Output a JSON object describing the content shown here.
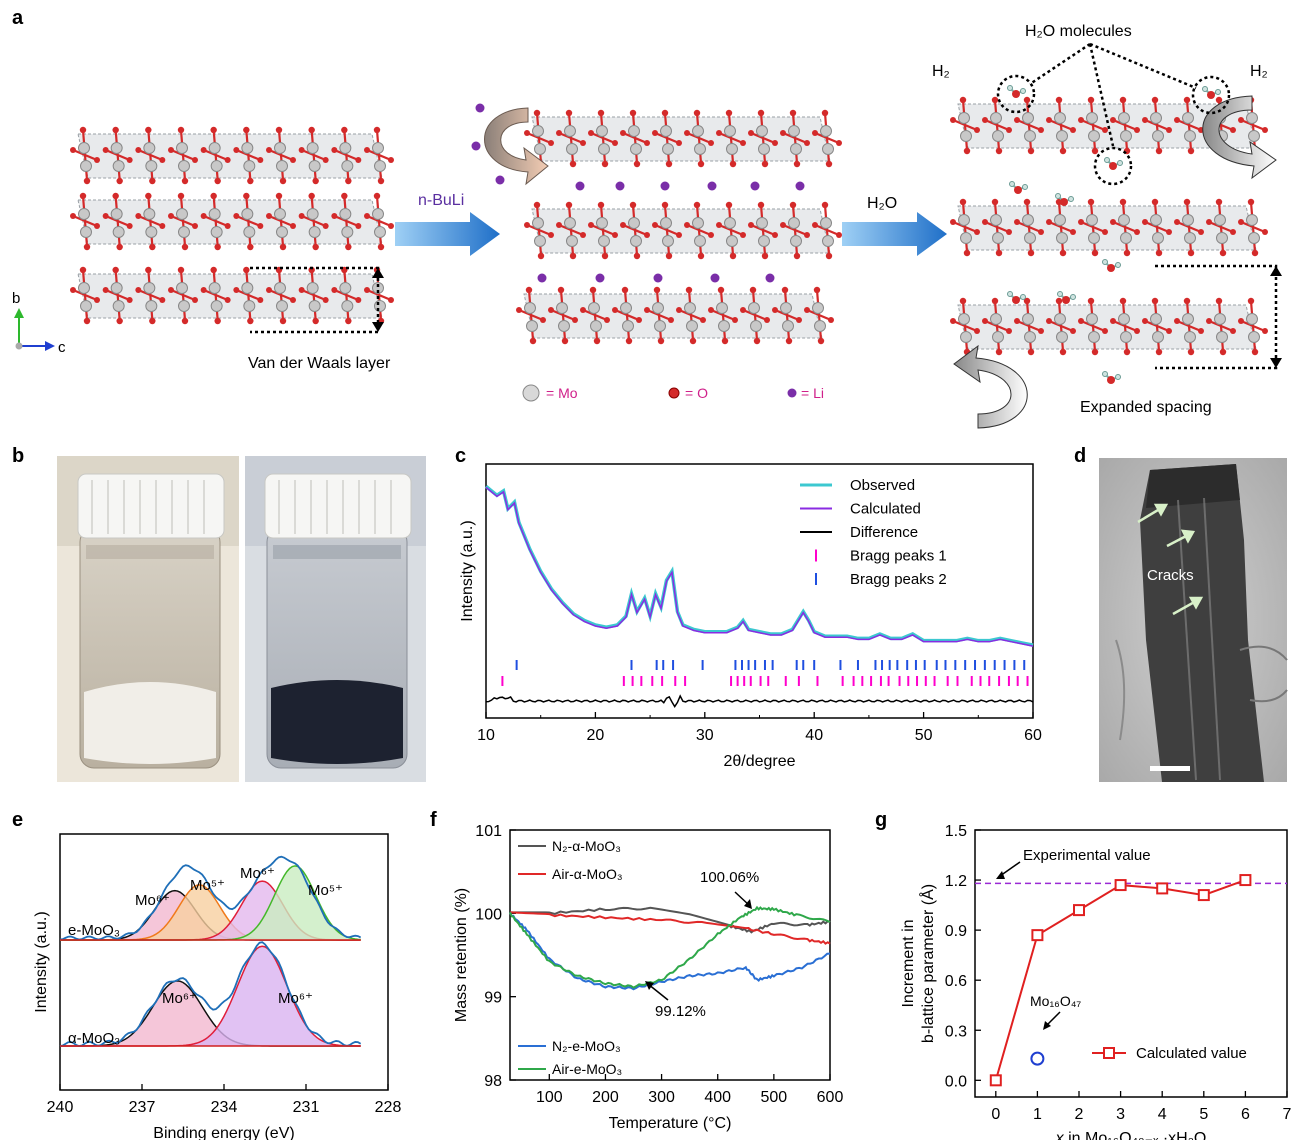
{
  "panels": {
    "a": {
      "label": "a",
      "axis_b": "b",
      "axis_c": "c",
      "vdw_label": "Van der Waals layer",
      "arrow1_label": "n-BuLi",
      "arrow2_label": "H₂O",
      "h2o_molecules": "H₂O molecules",
      "h2_left": "H₂",
      "h2_right": "H₂",
      "expanded_label": "Expanded spacing",
      "legend_mo": "= Mo",
      "legend_o": "= O",
      "legend_li": "= Li"
    },
    "b": {
      "label": "b"
    },
    "c": {
      "label": "c"
    },
    "d": {
      "label": "d",
      "cracks": "Cracks"
    },
    "e": {
      "label": "e"
    },
    "f": {
      "label": "f"
    },
    "g": {
      "label": "g"
    }
  },
  "colors": {
    "mo": "#c8c8c8",
    "oxygen": "#d42a2a",
    "li": "#7a2ea8",
    "arrow_blue": "#2a7fd4",
    "legend_text": "#d0208a"
  },
  "chart_data": [
    {
      "panel": "c",
      "type": "line",
      "xlabel": "2θ/degree",
      "ylabel": "Intensity (a.u.)",
      "xlim": [
        10,
        60
      ],
      "xticks": [
        "10",
        "20",
        "30",
        "40",
        "50",
        "60"
      ],
      "legend": [
        "Observed",
        "Calculated",
        "Difference",
        "Bragg peaks 1",
        "Bragg peaks 2"
      ],
      "series_colors": [
        "#3cc8d0",
        "#8a2be2",
        "#000000",
        "#ff00cc",
        "#1f4fe0"
      ],
      "observed": {
        "x": [
          10,
          11,
          11.6,
          12,
          12.6,
          13,
          14,
          15,
          16,
          17,
          18,
          19,
          20,
          21,
          22,
          22.8,
          23.3,
          23.8,
          24.5,
          25,
          25.5,
          26,
          26.5,
          27,
          27.5,
          28,
          29,
          30,
          31,
          32,
          33,
          33.5,
          34,
          35,
          36,
          37,
          38,
          39,
          39.5,
          40,
          41,
          42,
          43,
          44,
          45,
          46,
          47,
          48,
          49,
          50,
          51,
          52,
          53,
          54,
          55,
          56,
          57,
          58,
          59,
          60
        ],
        "y": [
          100,
          96,
          98,
          90,
          93,
          84,
          72,
          62,
          54,
          48,
          43,
          40,
          38,
          37,
          38,
          42,
          52,
          44,
          50,
          42,
          52,
          46,
          58,
          62,
          44,
          38,
          36,
          35,
          35,
          35,
          37,
          40,
          36,
          35,
          34,
          34,
          36,
          44,
          40,
          35,
          33,
          33,
          33,
          32,
          32,
          34,
          32,
          32,
          34,
          31,
          31,
          31,
          31,
          32,
          31,
          31,
          32,
          31,
          30,
          29
        ]
      },
      "difference_level": 4,
      "bragg1_x": [
        11.5,
        22.6,
        23.4,
        24.2,
        25.2,
        26.1,
        27.3,
        28.2,
        32.4,
        33.0,
        33.6,
        34.2,
        35.1,
        35.8,
        37.4,
        38.6,
        40.3,
        42.6,
        43.6,
        44.4,
        45.2,
        46.1,
        46.8,
        47.8,
        48.6,
        49.4,
        50.2,
        51.0,
        52.2,
        53.1,
        54.4,
        55.2,
        56.0,
        56.9,
        57.8,
        58.6,
        59.5
      ],
      "bragg2_x": [
        12.8,
        23.3,
        25.6,
        26.2,
        27.1,
        29.8,
        32.8,
        33.4,
        34.0,
        34.6,
        35.5,
        36.2,
        38.4,
        39.0,
        40.0,
        42.4,
        44.0,
        45.6,
        46.2,
        46.9,
        47.6,
        48.5,
        49.3,
        50.1,
        51.2,
        52.0,
        52.9,
        53.8,
        54.7,
        55.6,
        56.5,
        57.4,
        58.3,
        59.2
      ]
    },
    {
      "panel": "e",
      "type": "area",
      "xlabel": "Binding energy (eV)",
      "ylabel": "Intensity (a.u.)",
      "xlim": [
        240,
        228
      ],
      "xticks": [
        "240",
        "237",
        "234",
        "231",
        "228"
      ],
      "samples": [
        "e-MoO₃",
        "α-MoO₃"
      ],
      "peak_labels_top": [
        "Mo⁶⁺",
        "Mo⁵⁺",
        "Mo⁶⁺",
        "Mo⁵⁺"
      ],
      "peak_labels_bottom": [
        "Mo⁶⁺",
        "Mo⁶⁺"
      ],
      "e_MoO3_peaks": [
        {
          "label": "Mo6+",
          "center": 235.8,
          "height": 0.52,
          "fill": "#f3b8d0",
          "line": "#111111"
        },
        {
          "label": "Mo5+",
          "center": 234.9,
          "height": 0.58,
          "fill": "#f7cfa0",
          "line": "#f07a1a"
        },
        {
          "label": "Mo6+",
          "center": 232.6,
          "height": 0.62,
          "fill": "#e4b8ee",
          "line": "#e01e3a"
        },
        {
          "label": "Mo5+",
          "center": 231.4,
          "height": 0.78,
          "fill": "#c9ecc0",
          "line": "#44b82a"
        }
      ],
      "alpha_MoO3_peaks": [
        {
          "label": "Mo6+",
          "center": 235.7,
          "height": 0.62,
          "fill": "#f3b8d0",
          "line": "#111111"
        },
        {
          "label": "Mo6+",
          "center": 232.6,
          "height": 0.95,
          "fill": "#d9b3f0",
          "line": "#e01e3a"
        }
      ]
    },
    {
      "panel": "f",
      "type": "line",
      "xlabel": "Temperature (°C)",
      "ylabel": "Mass retention (%)",
      "xlim": [
        30,
        600
      ],
      "ylim": [
        98,
        101
      ],
      "xticks": [
        "100",
        "200",
        "300",
        "400",
        "500",
        "600"
      ],
      "yticks": [
        "98",
        "99",
        "100",
        "101"
      ],
      "series": [
        {
          "name": "N₂-α-MoO₃",
          "color": "#555555",
          "x": [
            30,
            100,
            200,
            280,
            350,
            420,
            460,
            500,
            560,
            600
          ],
          "y": [
            100.0,
            100.0,
            100.05,
            100.06,
            99.98,
            99.85,
            99.78,
            99.88,
            99.86,
            99.9
          ]
        },
        {
          "name": "Air-α-MoO₃",
          "color": "#e02828",
          "x": [
            30,
            100,
            200,
            300,
            380,
            450,
            500,
            560,
            600
          ],
          "y": [
            100.0,
            99.98,
            99.95,
            99.92,
            99.88,
            99.82,
            99.75,
            99.68,
            99.64
          ]
        },
        {
          "name": "N₂-e-MoO₃",
          "color": "#2a6fd4",
          "x": [
            30,
            60,
            100,
            150,
            200,
            250,
            300,
            350,
            400,
            450,
            470,
            500,
            550,
            600
          ],
          "y": [
            100.0,
            99.8,
            99.45,
            99.22,
            99.12,
            99.1,
            99.18,
            99.25,
            99.28,
            99.35,
            99.2,
            99.25,
            99.35,
            99.52
          ]
        },
        {
          "name": "Air-e-MoO₃",
          "color": "#2fa84a",
          "x": [
            30,
            60,
            100,
            150,
            200,
            250,
            300,
            350,
            400,
            440,
            470,
            500,
            540,
            600
          ],
          "y": [
            100.0,
            99.75,
            99.42,
            99.25,
            99.16,
            99.12,
            99.2,
            99.45,
            99.75,
            99.95,
            100.06,
            100.05,
            99.98,
            99.9
          ]
        }
      ],
      "annotations": [
        "100.06%",
        "99.12%"
      ]
    },
    {
      "panel": "g",
      "type": "scatter",
      "xlabel_prefix": "x",
      "xlabel": " in Mo₁₆O₄₈₋ₓ ·xH₂O",
      "ylabel": [
        "Increment in",
        "b-lattice parameter (Å)"
      ],
      "xlim": [
        -0.5,
        7
      ],
      "ylim": [
        -0.1,
        1.5
      ],
      "xticks": [
        "0",
        "1",
        "2",
        "3",
        "4",
        "5",
        "6",
        "7"
      ],
      "yticks": [
        "0.0",
        "0.3",
        "0.6",
        "0.9",
        "1.2",
        "1.5"
      ],
      "series": [
        {
          "name": "Calculated value",
          "x": [
            0,
            1,
            2,
            3,
            4,
            5,
            6
          ],
          "y": [
            0.0,
            0.87,
            1.02,
            1.17,
            1.15,
            1.11,
            1.2
          ]
        }
      ],
      "mo16o47": {
        "label": "Mo₁₆O₄₇",
        "x": 1,
        "y": 0.13
      },
      "experimental_value": 1.18,
      "experimental_label": "Experimental value"
    }
  ]
}
